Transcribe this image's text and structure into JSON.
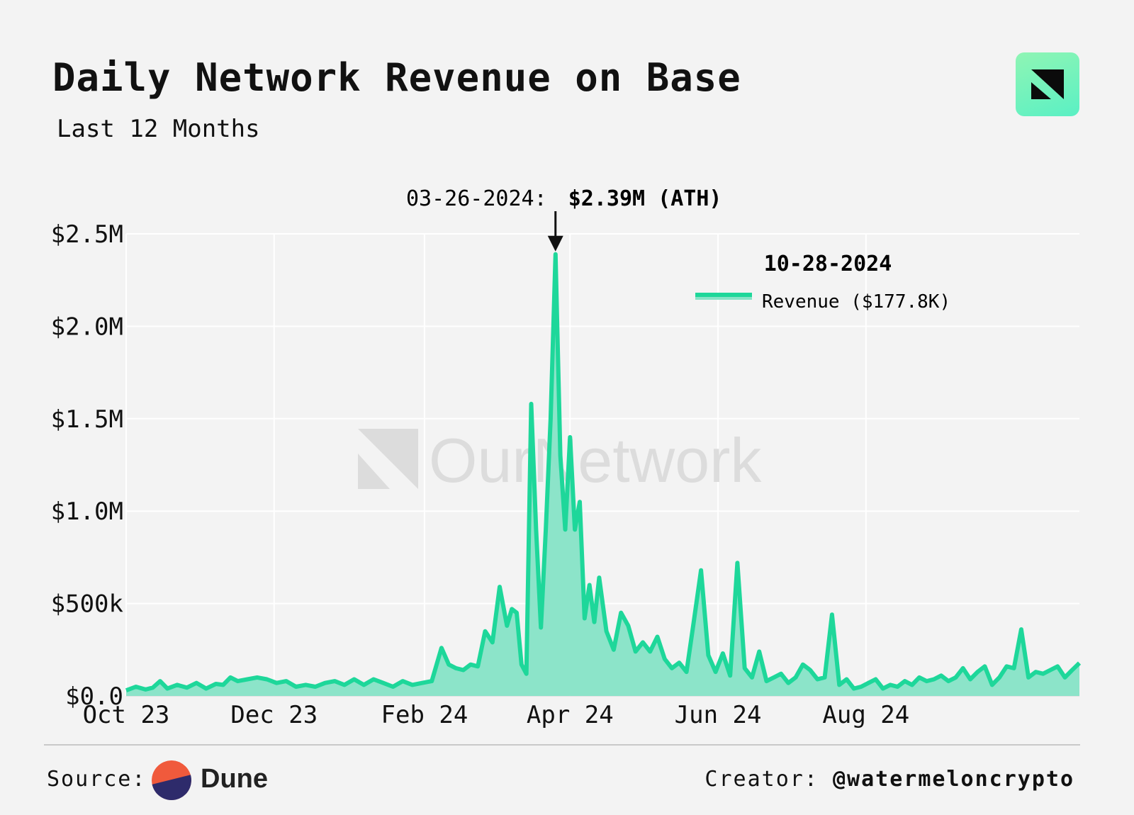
{
  "header": {
    "title": "Daily Network Revenue on Base",
    "subtitle": "Last 12 Months"
  },
  "annotation": {
    "date_text": "03-26-2024:",
    "value_text": "$2.39M (ATH)"
  },
  "legend": {
    "date": "10-28-2024",
    "label": "Revenue ($177.8K)"
  },
  "watermark": "OurNetwork",
  "footer": {
    "source_label": "Source:",
    "source_name": "Dune",
    "creator_label": "Creator:",
    "creator_handle": "@watermeloncrypto"
  },
  "colors": {
    "line": "#1ed79a",
    "fill": "#86e3c6",
    "background": "#f3f3f3",
    "grid": "#ffffff"
  },
  "chart_data": {
    "type": "area",
    "title": "Daily Network Revenue on Base",
    "subtitle": "Last 12 Months",
    "xlabel": "",
    "ylabel": "",
    "x_start": "2023-10-01",
    "x_end": "2024-10-28",
    "ylim": [
      0,
      2500000
    ],
    "y_ticks": [
      0,
      500000,
      1000000,
      1500000,
      2000000,
      2500000
    ],
    "y_tick_labels": [
      "$0.0",
      "$500k",
      "$1.0M",
      "$1.5M",
      "$2.0M",
      "$2.5M"
    ],
    "x_ticks": [
      "2023-10-01",
      "2023-12-01",
      "2024-02-01",
      "2024-04-01",
      "2024-06-01",
      "2024-08-01"
    ],
    "x_tick_labels": [
      "Oct 23",
      "Dec 23",
      "Feb 24",
      "Apr 24",
      "Jun 24",
      "Aug 24"
    ],
    "grid": true,
    "legend_position": "top-right",
    "series": [
      {
        "name": "Revenue",
        "points": [
          [
            "2023-10-01",
            30000
          ],
          [
            "2023-10-05",
            50000
          ],
          [
            "2023-10-09",
            35000
          ],
          [
            "2023-10-12",
            45000
          ],
          [
            "2023-10-15",
            80000
          ],
          [
            "2023-10-18",
            40000
          ],
          [
            "2023-10-22",
            60000
          ],
          [
            "2023-10-26",
            45000
          ],
          [
            "2023-10-30",
            70000
          ],
          [
            "2023-11-03",
            40000
          ],
          [
            "2023-11-07",
            65000
          ],
          [
            "2023-11-10",
            60000
          ],
          [
            "2023-11-13",
            100000
          ],
          [
            "2023-11-16",
            80000
          ],
          [
            "2023-11-20",
            90000
          ],
          [
            "2023-11-24",
            100000
          ],
          [
            "2023-11-28",
            90000
          ],
          [
            "2023-12-02",
            70000
          ],
          [
            "2023-12-06",
            80000
          ],
          [
            "2023-12-10",
            50000
          ],
          [
            "2023-12-14",
            60000
          ],
          [
            "2023-12-18",
            50000
          ],
          [
            "2023-12-22",
            70000
          ],
          [
            "2023-12-26",
            80000
          ],
          [
            "2023-12-30",
            60000
          ],
          [
            "2024-01-03",
            90000
          ],
          [
            "2024-01-07",
            60000
          ],
          [
            "2024-01-11",
            90000
          ],
          [
            "2024-01-15",
            70000
          ],
          [
            "2024-01-19",
            50000
          ],
          [
            "2024-01-23",
            80000
          ],
          [
            "2024-01-27",
            60000
          ],
          [
            "2024-01-31",
            70000
          ],
          [
            "2024-02-04",
            80000
          ],
          [
            "2024-02-08",
            260000
          ],
          [
            "2024-02-11",
            170000
          ],
          [
            "2024-02-14",
            150000
          ],
          [
            "2024-02-17",
            140000
          ],
          [
            "2024-02-20",
            170000
          ],
          [
            "2024-02-23",
            160000
          ],
          [
            "2024-02-26",
            350000
          ],
          [
            "2024-02-29",
            290000
          ],
          [
            "2024-03-03",
            590000
          ],
          [
            "2024-03-06",
            380000
          ],
          [
            "2024-03-08",
            470000
          ],
          [
            "2024-03-10",
            450000
          ],
          [
            "2024-03-12",
            170000
          ],
          [
            "2024-03-14",
            120000
          ],
          [
            "2024-03-16",
            1580000
          ],
          [
            "2024-03-18",
            900000
          ],
          [
            "2024-03-20",
            370000
          ],
          [
            "2024-03-22",
            900000
          ],
          [
            "2024-03-24",
            1500000
          ],
          [
            "2024-03-26",
            2390000
          ],
          [
            "2024-03-28",
            1300000
          ],
          [
            "2024-03-30",
            900000
          ],
          [
            "2024-04-01",
            1400000
          ],
          [
            "2024-04-03",
            900000
          ],
          [
            "2024-04-05",
            1050000
          ],
          [
            "2024-04-07",
            420000
          ],
          [
            "2024-04-09",
            600000
          ],
          [
            "2024-04-11",
            400000
          ],
          [
            "2024-04-13",
            640000
          ],
          [
            "2024-04-16",
            350000
          ],
          [
            "2024-04-19",
            250000
          ],
          [
            "2024-04-22",
            450000
          ],
          [
            "2024-04-25",
            380000
          ],
          [
            "2024-04-28",
            240000
          ],
          [
            "2024-05-01",
            290000
          ],
          [
            "2024-05-04",
            240000
          ],
          [
            "2024-05-07",
            320000
          ],
          [
            "2024-05-10",
            200000
          ],
          [
            "2024-05-13",
            150000
          ],
          [
            "2024-05-16",
            180000
          ],
          [
            "2024-05-19",
            130000
          ],
          [
            "2024-05-22",
            400000
          ],
          [
            "2024-05-25",
            680000
          ],
          [
            "2024-05-28",
            220000
          ],
          [
            "2024-05-31",
            130000
          ],
          [
            "2024-06-03",
            230000
          ],
          [
            "2024-06-06",
            110000
          ],
          [
            "2024-06-09",
            720000
          ],
          [
            "2024-06-12",
            150000
          ],
          [
            "2024-06-15",
            100000
          ],
          [
            "2024-06-18",
            240000
          ],
          [
            "2024-06-21",
            80000
          ],
          [
            "2024-06-24",
            100000
          ],
          [
            "2024-06-27",
            120000
          ],
          [
            "2024-06-30",
            70000
          ],
          [
            "2024-07-03",
            100000
          ],
          [
            "2024-07-06",
            170000
          ],
          [
            "2024-07-09",
            140000
          ],
          [
            "2024-07-12",
            90000
          ],
          [
            "2024-07-15",
            100000
          ],
          [
            "2024-07-18",
            440000
          ],
          [
            "2024-07-21",
            60000
          ],
          [
            "2024-07-24",
            90000
          ],
          [
            "2024-07-27",
            40000
          ],
          [
            "2024-07-30",
            50000
          ],
          [
            "2024-08-02",
            70000
          ],
          [
            "2024-08-05",
            90000
          ],
          [
            "2024-08-08",
            40000
          ],
          [
            "2024-08-11",
            60000
          ],
          [
            "2024-08-14",
            50000
          ],
          [
            "2024-08-17",
            80000
          ],
          [
            "2024-08-20",
            60000
          ],
          [
            "2024-08-23",
            100000
          ],
          [
            "2024-08-26",
            80000
          ],
          [
            "2024-08-29",
            90000
          ],
          [
            "2024-09-01",
            110000
          ],
          [
            "2024-09-04",
            80000
          ],
          [
            "2024-09-07",
            100000
          ],
          [
            "2024-09-10",
            150000
          ],
          [
            "2024-09-13",
            90000
          ],
          [
            "2024-09-16",
            130000
          ],
          [
            "2024-09-19",
            160000
          ],
          [
            "2024-09-22",
            60000
          ],
          [
            "2024-09-25",
            100000
          ],
          [
            "2024-09-28",
            160000
          ],
          [
            "2024-10-01",
            150000
          ],
          [
            "2024-10-04",
            360000
          ],
          [
            "2024-10-07",
            100000
          ],
          [
            "2024-10-10",
            130000
          ],
          [
            "2024-10-13",
            120000
          ],
          [
            "2024-10-16",
            140000
          ],
          [
            "2024-10-19",
            160000
          ],
          [
            "2024-10-22",
            100000
          ],
          [
            "2024-10-25",
            140000
          ],
          [
            "2024-10-28",
            177800
          ]
        ]
      }
    ],
    "annotations": [
      {
        "x": "2024-03-26",
        "y": 2390000,
        "text": "03-26-2024: $2.39M (ATH)"
      }
    ]
  }
}
